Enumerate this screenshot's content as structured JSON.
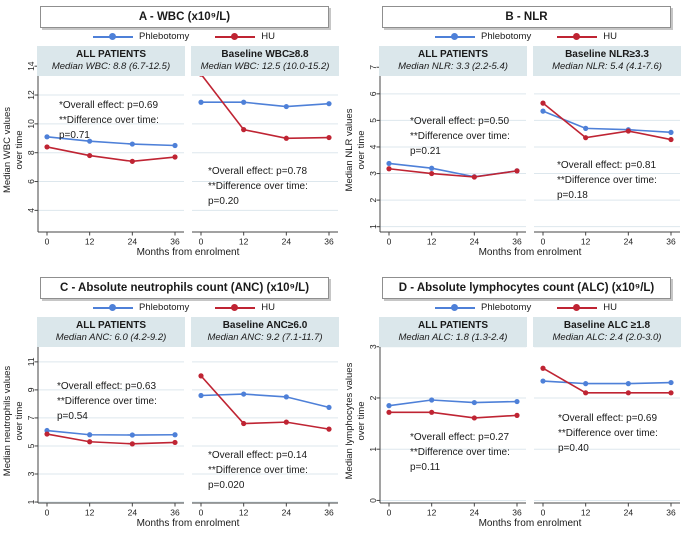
{
  "figure": {
    "legend": {
      "phlebotomy_label": "Phlebotomy",
      "hu_label": "HU"
    }
  },
  "colors": {
    "phlebotomy": "#4e80d8",
    "hu": "#bf2433",
    "header_bg": "#dbe7eb",
    "grid": "#dde7ed",
    "axis": "#444444"
  },
  "chart_data": [
    {
      "type": "line",
      "title": "A - WBC (x10⁹/L)",
      "ylabel": [
        "Median WBC values",
        "over time"
      ],
      "xlabel": "Months from enrolment",
      "ylim": [
        2.5,
        15.4
      ],
      "yticks": [
        4,
        6,
        8,
        10,
        12,
        14
      ],
      "x": [
        0,
        12,
        24,
        36
      ],
      "grid": true,
      "legend_position": "top",
      "subpanels": [
        {
          "header": "ALL PATIENTS",
          "subheader": "Median WBC: 8.8 (6.7-12.5)",
          "annotation": [
            "*Overall effect: p=0.69",
            "**Difference over time:",
            "p=0.71"
          ],
          "annotation_pos": {
            "x": 21,
            "y": 52
          },
          "series": [
            {
              "name": "Phlebotomy",
              "color_key": "phlebotomy",
              "values": [
                9.1,
                8.8,
                8.6,
                8.5
              ]
            },
            {
              "name": "HU",
              "color_key": "hu",
              "values": [
                8.4,
                7.8,
                7.4,
                7.7
              ]
            }
          ]
        },
        {
          "header": "Baseline WBC≥8.8",
          "subheader": "Median WBC: 12.5 (10.0-15.2)",
          "annotation": [
            "*Overall effect: p=0.78",
            "**Difference over time:",
            "p=0.20"
          ],
          "annotation_pos": {
            "x": 16,
            "y": 118
          },
          "series": [
            {
              "name": "Phlebotomy",
              "color_key": "phlebotomy",
              "values": [
                11.5,
                11.5,
                11.2,
                11.4
              ]
            },
            {
              "name": "HU",
              "color_key": "hu",
              "values": [
                13.45,
                9.6,
                9.0,
                9.05
              ]
            }
          ]
        }
      ]
    },
    {
      "type": "line",
      "title": "B - NLR",
      "ylabel": [
        "Median NLR values",
        "over time"
      ],
      "xlabel": "Months from enrolment",
      "ylim": [
        0.8,
        7.8
      ],
      "yticks": [
        1,
        2,
        3,
        4,
        5,
        6,
        7
      ],
      "x": [
        0,
        12,
        24,
        36
      ],
      "grid": true,
      "legend_position": "top",
      "subpanels": [
        {
          "header": "ALL PATIENTS",
          "subheader": "Median NLR: 3.3 (2.2-5.4)",
          "annotation": [
            "*Overall effect: p=0.50",
            "**Difference over time:",
            "p=0.21"
          ],
          "annotation_pos": {
            "x": 30,
            "y": 68
          },
          "series": [
            {
              "name": "Phlebotomy",
              "color_key": "phlebotomy",
              "values": [
                3.38,
                3.2,
                2.88,
                3.1
              ]
            },
            {
              "name": "HU",
              "color_key": "hu",
              "values": [
                3.18,
                3.0,
                2.87,
                3.1
              ]
            }
          ]
        },
        {
          "header": "Baseline NLR≥3.3",
          "subheader": "Median NLR: 5.4 (4.1-7.6)",
          "annotation": [
            "*Overall effect: p=0.81",
            "**Difference over time:",
            "p=0.18"
          ],
          "annotation_pos": {
            "x": 23,
            "y": 112
          },
          "series": [
            {
              "name": "Phlebotomy",
              "color_key": "phlebotomy",
              "values": [
                5.35,
                4.7,
                4.65,
                4.55
              ]
            },
            {
              "name": "HU",
              "color_key": "hu",
              "values": [
                5.65,
                4.35,
                4.6,
                4.28
              ]
            }
          ]
        }
      ]
    },
    {
      "type": "line",
      "title": "C - Absolute neutrophils count (ANC) (x10⁹/L)",
      "ylabel": [
        "Median neutrophils values",
        "over time"
      ],
      "xlabel": "Months from enrolment",
      "ylim": [
        0.93,
        14.2
      ],
      "yticks": [
        1,
        3,
        5,
        7,
        9,
        11
      ],
      "x": [
        0,
        12,
        24,
        36
      ],
      "grid": true,
      "legend_position": "top",
      "subpanels": [
        {
          "header": "ALL PATIENTS",
          "subheader": "Median ANC: 6.0 (4.2-9.2)",
          "annotation": [
            "*Overall effect: p=0.63",
            "**Difference over time:",
            "p=0.54"
          ],
          "annotation_pos": {
            "x": 19,
            "y": 62
          },
          "series": [
            {
              "name": "Phlebotomy",
              "color_key": "phlebotomy",
              "values": [
                6.1,
                5.8,
                5.78,
                5.8
              ]
            },
            {
              "name": "HU",
              "color_key": "hu",
              "values": [
                5.85,
                5.3,
                5.15,
                5.25
              ]
            }
          ]
        },
        {
          "header": "Baseline ANC≥6.0",
          "subheader": "Median ANC: 9.2 (7.1-11.7)",
          "annotation": [
            "*Overall effect: p=0.14",
            "**Difference over time:",
            "p=0.020"
          ],
          "annotation_pos": {
            "x": 16,
            "y": 131
          },
          "series": [
            {
              "name": "Phlebotomy",
              "color_key": "phlebotomy",
              "values": [
                8.6,
                8.7,
                8.5,
                7.75
              ]
            },
            {
              "name": "HU",
              "color_key": "hu",
              "values": [
                10.0,
                6.6,
                6.7,
                6.2
              ]
            }
          ]
        }
      ]
    },
    {
      "type": "line",
      "title": "D - Absolute lymphocytes count (ALC) (x10⁹/L)",
      "ylabel": [
        "Median lymphocytes values",
        "over time"
      ],
      "xlabel": "Months from enrolment",
      "ylim": [
        -0.05,
        3.58
      ],
      "yticks": [
        0,
        1,
        2,
        3
      ],
      "x": [
        0,
        12,
        24,
        36
      ],
      "grid": true,
      "legend_position": "top",
      "subpanels": [
        {
          "header": "ALL PATIENTS",
          "subheader": "Median ALC: 1.8 (1.3-2.4)",
          "annotation": [
            "*Overall effect: p=0.27",
            "**Difference over time:",
            "p=0.11"
          ],
          "annotation_pos": {
            "x": 30,
            "y": 113
          },
          "series": [
            {
              "name": "Phlebotomy",
              "color_key": "phlebotomy",
              "values": [
                1.85,
                1.96,
                1.91,
                1.93
              ]
            },
            {
              "name": "HU",
              "color_key": "hu",
              "values": [
                1.72,
                1.72,
                1.61,
                1.66
              ]
            }
          ]
        },
        {
          "header": "Baseline ALC ≥1.8",
          "subheader": "Median ALC: 2.4 (2.0-3.0)",
          "annotation": [
            "*Overall effect: p=0.69",
            "**Difference over time:",
            "p=0.40"
          ],
          "annotation_pos": {
            "x": 24,
            "y": 94
          },
          "series": [
            {
              "name": "Phlebotomy",
              "color_key": "phlebotomy",
              "values": [
                2.33,
                2.28,
                2.28,
                2.3
              ]
            },
            {
              "name": "HU",
              "color_key": "hu",
              "values": [
                2.58,
                2.1,
                2.1,
                2.1
              ]
            }
          ]
        }
      ]
    }
  ]
}
